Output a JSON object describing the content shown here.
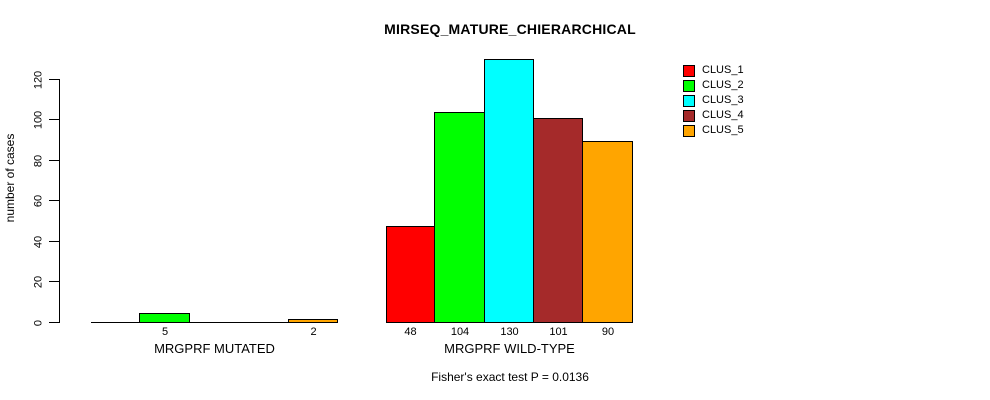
{
  "chart_data": {
    "type": "bar",
    "title": "MIRSEQ_MATURE_CHIERARCHICAL",
    "ylabel": "number of cases",
    "xlabel": "",
    "note": "Fisher's exact test P = 0.0136",
    "categories": [
      "MRGPRF MUTATED",
      "MRGPRF WILD-TYPE"
    ],
    "series": [
      {
        "name": "CLUS_1",
        "color": "#FF0000",
        "values": [
          0,
          48
        ]
      },
      {
        "name": "CLUS_2",
        "color": "#00FF00",
        "values": [
          5,
          104
        ]
      },
      {
        "name": "CLUS_3",
        "color": "#00FFFF",
        "values": [
          0,
          130
        ]
      },
      {
        "name": "CLUS_4",
        "color": "#A52A2A",
        "values": [
          0,
          101
        ]
      },
      {
        "name": "CLUS_5",
        "color": "#FFA500",
        "values": [
          2,
          90
        ]
      }
    ],
    "value_labels": [
      [
        "",
        "5",
        "",
        "",
        "2"
      ],
      [
        "48",
        "104",
        "130",
        "101",
        "90"
      ]
    ],
    "ylim": [
      0,
      130
    ],
    "yticks": [
      0,
      20,
      40,
      60,
      80,
      100,
      120
    ],
    "grid": false,
    "legend_position": "top-right",
    "bar_border_color": "#000000",
    "text_color": "#000000",
    "background_color": "#FFFFFF"
  }
}
